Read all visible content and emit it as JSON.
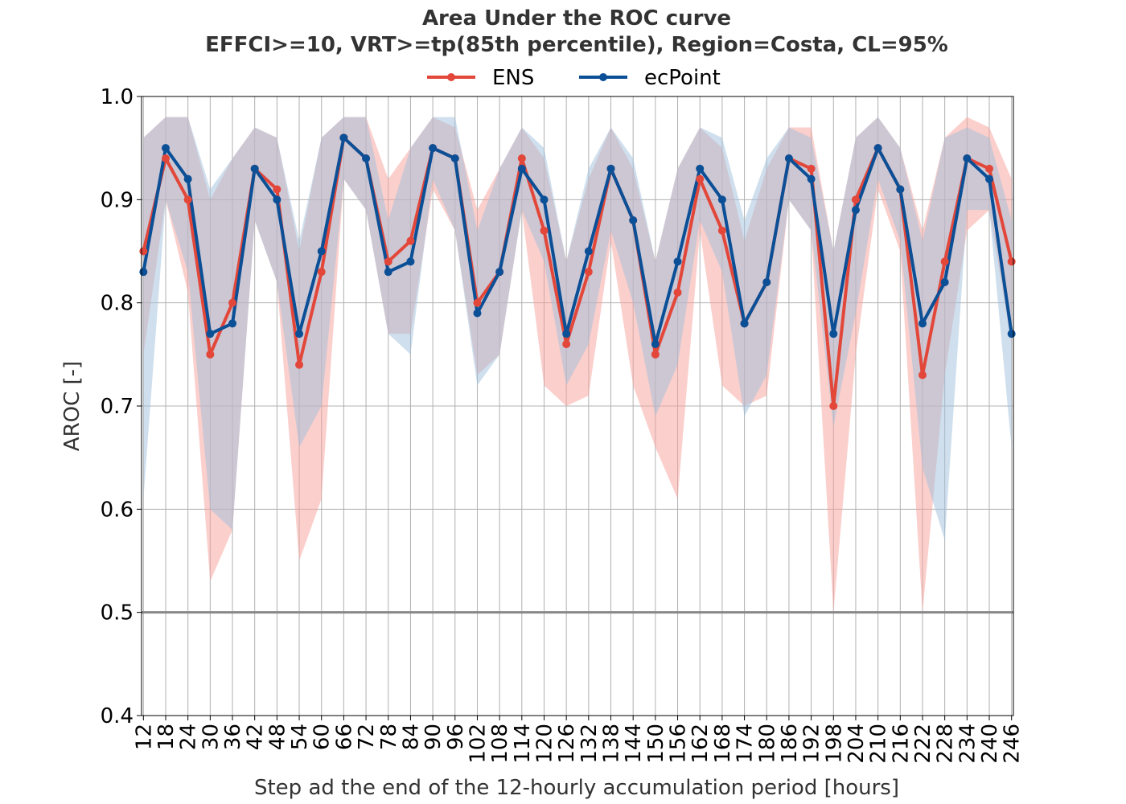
{
  "chart_data": {
    "type": "line",
    "title": "Area Under the ROC curve",
    "subtitle": "EFFCI>=10, VRT>=tp(85th percentile), Region=Costa, CL=95%",
    "xlabel": "Step ad the end of the 12-hourly accumulation period [hours]",
    "ylabel": "AROC [-]",
    "ylim": [
      0.4,
      1.0
    ],
    "yticks": [
      "0.4",
      "0.5",
      "0.6",
      "0.7",
      "0.8",
      "0.9",
      "1.0"
    ],
    "grid": true,
    "legend_position": "top-center",
    "reference_line": 0.5,
    "x": [
      12,
      18,
      24,
      30,
      36,
      42,
      48,
      54,
      60,
      66,
      72,
      78,
      84,
      90,
      96,
      102,
      108,
      114,
      120,
      126,
      132,
      138,
      144,
      150,
      156,
      162,
      168,
      174,
      180,
      186,
      192,
      198,
      204,
      210,
      216,
      222,
      228,
      234,
      240,
      246
    ],
    "series": [
      {
        "name": "ENS",
        "color": "#e2473a",
        "band_color": "#f7a09a",
        "values": [
          0.85,
          0.94,
          0.9,
          0.75,
          0.8,
          0.93,
          0.91,
          0.74,
          0.83,
          0.96,
          0.94,
          0.84,
          0.86,
          0.95,
          0.94,
          0.8,
          0.83,
          0.94,
          0.87,
          0.76,
          0.83,
          0.93,
          0.88,
          0.75,
          0.81,
          0.92,
          0.87,
          0.78,
          0.82,
          0.94,
          0.93,
          0.7,
          0.9,
          0.95,
          0.91,
          0.73,
          0.84,
          0.94,
          0.93,
          0.84
        ],
        "lower": [
          0.75,
          0.9,
          0.81,
          0.53,
          0.58,
          0.88,
          0.82,
          0.55,
          0.61,
          0.92,
          0.89,
          0.77,
          0.77,
          0.91,
          0.87,
          0.73,
          0.75,
          0.89,
          0.72,
          0.7,
          0.71,
          0.86,
          0.72,
          0.66,
          0.61,
          0.87,
          0.72,
          0.7,
          0.71,
          0.9,
          0.87,
          0.5,
          0.75,
          0.91,
          0.85,
          0.5,
          0.73,
          0.87,
          0.89,
          0.76
        ],
        "upper": [
          0.96,
          0.98,
          0.98,
          0.9,
          0.94,
          0.97,
          0.96,
          0.85,
          0.96,
          0.98,
          0.98,
          0.92,
          0.95,
          0.98,
          0.97,
          0.89,
          0.93,
          0.97,
          0.94,
          0.84,
          0.92,
          0.97,
          0.93,
          0.84,
          0.93,
          0.97,
          0.95,
          0.86,
          0.93,
          0.97,
          0.97,
          0.85,
          0.96,
          0.98,
          0.95,
          0.87,
          0.96,
          0.98,
          0.97,
          0.92
        ]
      },
      {
        "name": "ecPoint",
        "color": "#0b4f96",
        "band_color": "#9fbfdc",
        "values": [
          0.83,
          0.95,
          0.92,
          0.77,
          0.78,
          0.93,
          0.9,
          0.77,
          0.85,
          0.96,
          0.94,
          0.83,
          0.84,
          0.95,
          0.94,
          0.79,
          0.83,
          0.93,
          0.9,
          0.77,
          0.85,
          0.93,
          0.88,
          0.76,
          0.84,
          0.93,
          0.9,
          0.78,
          0.82,
          0.94,
          0.92,
          0.77,
          0.89,
          0.95,
          0.91,
          0.78,
          0.82,
          0.94,
          0.92,
          0.77
        ],
        "lower": [
          0.61,
          0.9,
          0.83,
          0.6,
          0.58,
          0.88,
          0.82,
          0.66,
          0.7,
          0.92,
          0.89,
          0.77,
          0.75,
          0.92,
          0.87,
          0.72,
          0.75,
          0.89,
          0.84,
          0.72,
          0.76,
          0.87,
          0.8,
          0.69,
          0.74,
          0.88,
          0.83,
          0.69,
          0.73,
          0.9,
          0.87,
          0.68,
          0.79,
          0.92,
          0.86,
          0.64,
          0.57,
          0.89,
          0.89,
          0.66
        ],
        "upper": [
          0.96,
          0.98,
          0.98,
          0.91,
          0.94,
          0.97,
          0.96,
          0.86,
          0.96,
          0.98,
          0.98,
          0.88,
          0.95,
          0.98,
          0.98,
          0.87,
          0.93,
          0.97,
          0.95,
          0.84,
          0.93,
          0.97,
          0.94,
          0.84,
          0.93,
          0.97,
          0.96,
          0.88,
          0.94,
          0.97,
          0.96,
          0.85,
          0.96,
          0.98,
          0.95,
          0.86,
          0.96,
          0.97,
          0.96,
          0.88
        ]
      }
    ]
  }
}
